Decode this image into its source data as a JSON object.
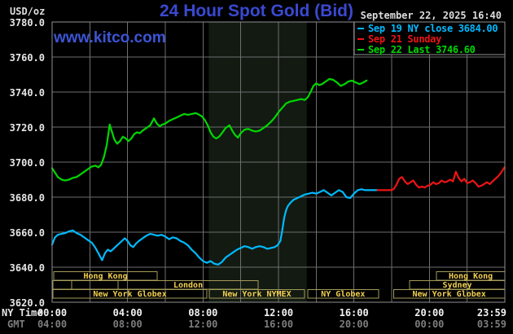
{
  "header": {
    "unit_label": "USD/oz",
    "title": "24 Hour Spot Gold (Bid)",
    "watermark": "www.kitco.com",
    "datetime": "September 22, 2025 16:40"
  },
  "legend": {
    "entries": [
      {
        "marker": "dash",
        "label": "Sep 19 NY close 3684.00",
        "color": "#00baff"
      },
      {
        "marker": "dash",
        "label": "Sep 21 Sunday",
        "color": "#ee1414"
      },
      {
        "marker": "dash",
        "label": "Sep 22 Last 3746.60",
        "color": "#00d800"
      }
    ]
  },
  "axes": {
    "ny_time_label": "NY Time",
    "gmt_label": "GMT",
    "ny_ticks": [
      "00:00",
      "04:00",
      "08:00",
      "12:00",
      "16:00",
      "20:00",
      "23:59"
    ],
    "gmt_ticks": [
      "04:00",
      "08:00",
      "12:00",
      "16:00",
      "20:00",
      "00:00",
      "03:59"
    ],
    "y_ticks": [
      "3780.0",
      "3760.0",
      "3740.0",
      "3720.0",
      "3700.0",
      "3680.0",
      "3660.0",
      "3640.0",
      "3620.0"
    ]
  },
  "sessions": {
    "rows": [
      {
        "boxes": [
          {
            "label": "Hong Kong",
            "start_h": 0.09,
            "end_h": 5.57
          },
          {
            "label": "Hong Kong",
            "start_h": 20.38,
            "end_h": 24
          }
        ]
      },
      {
        "boxes": [
          {
            "label": "",
            "start_h": 0.05,
            "end_h": 1.04
          },
          {
            "label": "",
            "start_h": 1.04,
            "end_h": 3.5
          },
          {
            "label": "London",
            "start_h": 3.5,
            "end_h": 10.92
          },
          {
            "label": "Sydney",
            "start_h": 18.95,
            "end_h": 24
          }
        ]
      },
      {
        "boxes": [
          {
            "label": "New York Globex",
            "start_h": 0.05,
            "end_h": 8.2
          },
          {
            "label": "New York NYMEX",
            "start_h": 8.33,
            "end_h": 13.38
          },
          {
            "label": "NY Globex",
            "start_h": 13.55,
            "end_h": 17.3
          },
          {
            "label": "New York Globex",
            "start_h": 18.1,
            "end_h": 24
          }
        ]
      }
    ]
  },
  "chart_data": {
    "type": "line",
    "title": "24 Hour Spot Gold (Bid)",
    "unit": "USD/oz",
    "xlabel": "NY Time",
    "x_range_hours": [
      0,
      24
    ],
    "ylim": [
      3620,
      3780
    ],
    "y_tick_step": 20,
    "grid": true,
    "nymex_shade_hours": [
      8.3,
      13.5
    ],
    "colors": {
      "grid": "#6e6e6e",
      "frame": "#8f8f8f",
      "shade": "#121a12",
      "session_border": "#a39a58",
      "session_text": "#f2d051"
    },
    "series": [
      {
        "name": "Sep 19 NY close",
        "color": "#00baff",
        "points": [
          [
            0,
            3653
          ],
          [
            0.15,
            3657
          ],
          [
            0.3,
            3658.5
          ],
          [
            0.5,
            3659
          ],
          [
            0.7,
            3659.5
          ],
          [
            0.9,
            3660.5
          ],
          [
            1.1,
            3661
          ],
          [
            1.3,
            3659.5
          ],
          [
            1.5,
            3658.5
          ],
          [
            1.7,
            3657
          ],
          [
            1.9,
            3655.5
          ],
          [
            2.1,
            3654
          ],
          [
            2.3,
            3651
          ],
          [
            2.5,
            3647
          ],
          [
            2.65,
            3644
          ],
          [
            2.8,
            3648
          ],
          [
            2.95,
            3650
          ],
          [
            3.1,
            3649
          ],
          [
            3.25,
            3650.5
          ],
          [
            3.4,
            3652
          ],
          [
            3.55,
            3653.5
          ],
          [
            3.7,
            3655
          ],
          [
            3.85,
            3656.5
          ],
          [
            4,
            3655
          ],
          [
            4.15,
            3652.5
          ],
          [
            4.3,
            3651.5
          ],
          [
            4.45,
            3653.5
          ],
          [
            4.6,
            3655
          ],
          [
            4.8,
            3656.5
          ],
          [
            5,
            3658
          ],
          [
            5.2,
            3659
          ],
          [
            5.4,
            3658.5
          ],
          [
            5.6,
            3658
          ],
          [
            5.8,
            3658.5
          ],
          [
            6,
            3657.5
          ],
          [
            6.2,
            3656
          ],
          [
            6.4,
            3657
          ],
          [
            6.6,
            3656.5
          ],
          [
            6.8,
            3655
          ],
          [
            7,
            3654
          ],
          [
            7.2,
            3652.5
          ],
          [
            7.4,
            3650
          ],
          [
            7.6,
            3648
          ],
          [
            7.8,
            3645.5
          ],
          [
            8,
            3643.5
          ],
          [
            8.2,
            3642.5
          ],
          [
            8.4,
            3643.5
          ],
          [
            8.6,
            3642
          ],
          [
            8.8,
            3641.5
          ],
          [
            9,
            3643
          ],
          [
            9.2,
            3645.5
          ],
          [
            9.4,
            3647
          ],
          [
            9.6,
            3648.5
          ],
          [
            9.8,
            3650
          ],
          [
            10,
            3651
          ],
          [
            10.2,
            3652
          ],
          [
            10.4,
            3651.5
          ],
          [
            10.6,
            3650.5
          ],
          [
            10.8,
            3651.5
          ],
          [
            11,
            3652
          ],
          [
            11.2,
            3651.5
          ],
          [
            11.4,
            3650.5
          ],
          [
            11.6,
            3651
          ],
          [
            11.8,
            3651.5
          ],
          [
            11.95,
            3652.5
          ],
          [
            12.1,
            3655
          ],
          [
            12.2,
            3661
          ],
          [
            12.3,
            3668
          ],
          [
            12.4,
            3672.5
          ],
          [
            12.5,
            3675
          ],
          [
            12.65,
            3677
          ],
          [
            12.8,
            3678.5
          ],
          [
            13,
            3679.5
          ],
          [
            13.2,
            3680.5
          ],
          [
            13.4,
            3681.5
          ],
          [
            13.6,
            3682
          ],
          [
            13.8,
            3682.5
          ],
          [
            14,
            3682
          ],
          [
            14.2,
            3683
          ],
          [
            14.4,
            3684
          ],
          [
            14.6,
            3682.5
          ],
          [
            14.8,
            3681
          ],
          [
            15,
            3682.5
          ],
          [
            15.2,
            3684
          ],
          [
            15.4,
            3683
          ],
          [
            15.6,
            3680
          ],
          [
            15.8,
            3679.5
          ],
          [
            16,
            3682
          ],
          [
            16.2,
            3684
          ],
          [
            16.4,
            3684.5
          ],
          [
            16.6,
            3684
          ],
          [
            16.8,
            3684
          ],
          [
            17,
            3684
          ],
          [
            17.25,
            3684
          ]
        ]
      },
      {
        "name": "Sep 21 Sunday",
        "color": "#ee1414",
        "points": [
          [
            17.25,
            3684
          ],
          [
            17.6,
            3684
          ],
          [
            17.95,
            3684
          ],
          [
            18.1,
            3684.5
          ],
          [
            18.25,
            3687
          ],
          [
            18.4,
            3690.5
          ],
          [
            18.55,
            3691.5
          ],
          [
            18.7,
            3689
          ],
          [
            18.85,
            3687.5
          ],
          [
            19,
            3688.5
          ],
          [
            19.15,
            3689.5
          ],
          [
            19.3,
            3687
          ],
          [
            19.45,
            3685.5
          ],
          [
            19.6,
            3686
          ],
          [
            19.75,
            3685.5
          ],
          [
            19.9,
            3686.5
          ],
          [
            20.05,
            3687
          ],
          [
            20.2,
            3688.5
          ],
          [
            20.35,
            3687.5
          ],
          [
            20.5,
            3688
          ],
          [
            20.65,
            3689.5
          ],
          [
            20.8,
            3688.5
          ],
          [
            20.95,
            3689
          ],
          [
            21.1,
            3690
          ],
          [
            21.25,
            3689
          ],
          [
            21.4,
            3694.5
          ],
          [
            21.55,
            3691
          ],
          [
            21.7,
            3689
          ],
          [
            21.85,
            3690.5
          ],
          [
            22,
            3688
          ],
          [
            22.15,
            3688.5
          ],
          [
            22.3,
            3689.5
          ],
          [
            22.45,
            3688
          ],
          [
            22.6,
            3686
          ],
          [
            22.75,
            3686.5
          ],
          [
            22.9,
            3687.5
          ],
          [
            23.05,
            3688.5
          ],
          [
            23.2,
            3687.5
          ],
          [
            23.35,
            3689
          ],
          [
            23.5,
            3690.5
          ],
          [
            23.65,
            3692
          ],
          [
            23.8,
            3694
          ],
          [
            23.98,
            3697
          ]
        ]
      },
      {
        "name": "Sep 22 Last",
        "color": "#00d800",
        "points": [
          [
            0,
            3696.5
          ],
          [
            0.15,
            3694
          ],
          [
            0.3,
            3691.5
          ],
          [
            0.5,
            3690
          ],
          [
            0.7,
            3689.5
          ],
          [
            0.9,
            3690
          ],
          [
            1.1,
            3691
          ],
          [
            1.3,
            3691.5
          ],
          [
            1.5,
            3693
          ],
          [
            1.7,
            3694.5
          ],
          [
            1.9,
            3696
          ],
          [
            2.1,
            3697.5
          ],
          [
            2.3,
            3698
          ],
          [
            2.45,
            3697
          ],
          [
            2.6,
            3698.5
          ],
          [
            2.75,
            3703
          ],
          [
            2.9,
            3710
          ],
          [
            3,
            3717.5
          ],
          [
            3.05,
            3721.5
          ],
          [
            3.15,
            3718
          ],
          [
            3.3,
            3713
          ],
          [
            3.45,
            3710.5
          ],
          [
            3.6,
            3712
          ],
          [
            3.75,
            3714.5
          ],
          [
            3.9,
            3713.5
          ],
          [
            4.05,
            3712
          ],
          [
            4.2,
            3713.5
          ],
          [
            4.35,
            3716
          ],
          [
            4.5,
            3717
          ],
          [
            4.65,
            3716.5
          ],
          [
            4.8,
            3718
          ],
          [
            5,
            3719.5
          ],
          [
            5.2,
            3721
          ],
          [
            5.4,
            3725
          ],
          [
            5.55,
            3722
          ],
          [
            5.7,
            3720.5
          ],
          [
            5.85,
            3721.5
          ],
          [
            6,
            3722
          ],
          [
            6.2,
            3723.5
          ],
          [
            6.4,
            3724.5
          ],
          [
            6.6,
            3725.5
          ],
          [
            6.8,
            3726.5
          ],
          [
            7,
            3727.5
          ],
          [
            7.2,
            3727
          ],
          [
            7.4,
            3727.5
          ],
          [
            7.6,
            3728
          ],
          [
            7.8,
            3727
          ],
          [
            7.95,
            3726
          ],
          [
            8.1,
            3724
          ],
          [
            8.25,
            3721
          ],
          [
            8.4,
            3717
          ],
          [
            8.55,
            3714.5
          ],
          [
            8.7,
            3713.5
          ],
          [
            8.85,
            3714.5
          ],
          [
            9,
            3716.5
          ],
          [
            9.2,
            3719.5
          ],
          [
            9.4,
            3721
          ],
          [
            9.55,
            3718
          ],
          [
            9.7,
            3715.5
          ],
          [
            9.85,
            3714
          ],
          [
            10,
            3716.5
          ],
          [
            10.2,
            3718.5
          ],
          [
            10.4,
            3719
          ],
          [
            10.6,
            3718
          ],
          [
            10.8,
            3717.5
          ],
          [
            11,
            3718
          ],
          [
            11.2,
            3719.5
          ],
          [
            11.4,
            3721
          ],
          [
            11.6,
            3723
          ],
          [
            11.8,
            3725.5
          ],
          [
            12,
            3728.5
          ],
          [
            12.2,
            3731
          ],
          [
            12.4,
            3733.5
          ],
          [
            12.6,
            3734.5
          ],
          [
            12.8,
            3735
          ],
          [
            13,
            3735.5
          ],
          [
            13.2,
            3736
          ],
          [
            13.4,
            3735.5
          ],
          [
            13.55,
            3737
          ],
          [
            13.7,
            3740
          ],
          [
            13.85,
            3743.5
          ],
          [
            14,
            3745
          ],
          [
            14.15,
            3744
          ],
          [
            14.3,
            3744.5
          ],
          [
            14.5,
            3746
          ],
          [
            14.7,
            3747.5
          ],
          [
            14.9,
            3747
          ],
          [
            15.1,
            3745.5
          ],
          [
            15.3,
            3743.5
          ],
          [
            15.5,
            3744.5
          ],
          [
            15.7,
            3746
          ],
          [
            15.9,
            3746.5
          ],
          [
            16.1,
            3745.5
          ],
          [
            16.3,
            3744.5
          ],
          [
            16.5,
            3745.5
          ],
          [
            16.67,
            3746.6
          ]
        ]
      }
    ]
  }
}
